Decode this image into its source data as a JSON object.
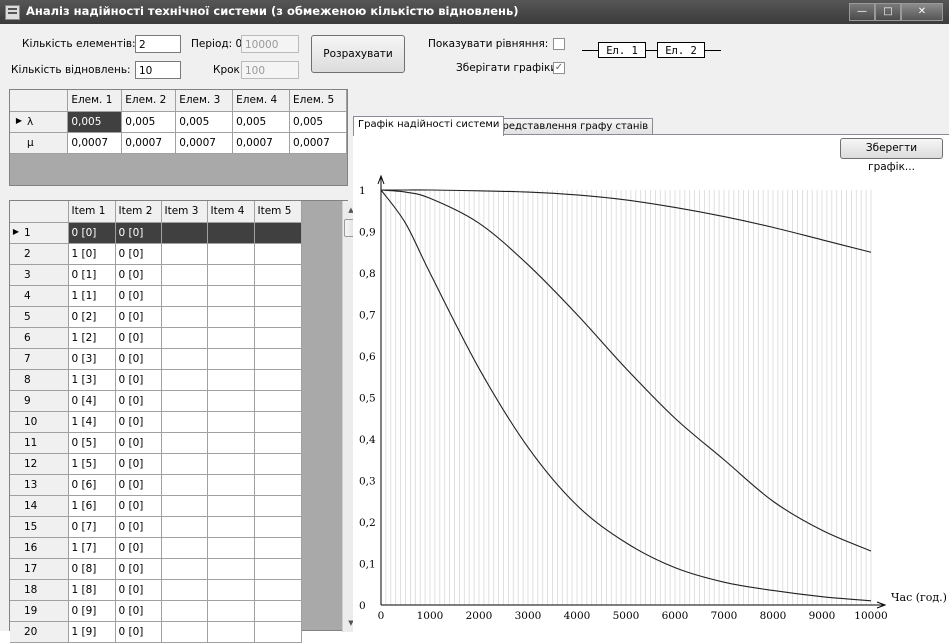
{
  "window": {
    "title": "Аналіз надійності технічної системи (з обмеженою кількістю відновлень)",
    "min": "—",
    "max": "□",
    "close": "✕"
  },
  "controls": {
    "elements_label": "Кількість елементів:",
    "elements_value": "2",
    "recoveries_label": "Кількість відновлень:",
    "recoveries_value": "10",
    "period_label": "Період: 0 -",
    "period_value": "10000",
    "step_label": "Крок:",
    "step_value": "100",
    "calc_button": "Розрахувати",
    "show_equations_label": "Показувати рівняння:",
    "show_equations_checked": false,
    "save_charts_label": "Зберігати графіки:",
    "save_charts_checked": true
  },
  "diagram": {
    "el1": "Ел. 1",
    "el2": "Ел. 2"
  },
  "params_table": {
    "columns": [
      "Елем. 1",
      "Елем. 2",
      "Елем. 3",
      "Елем. 4",
      "Елем. 5"
    ],
    "rows": [
      {
        "name": "λ",
        "values": [
          "0,005",
          "0,005",
          "0,005",
          "0,005",
          "0,005"
        ]
      },
      {
        "name": "μ",
        "values": [
          "0,0007",
          "0,0007",
          "0,0007",
          "0,0007",
          "0,0007"
        ]
      }
    ]
  },
  "states_table": {
    "columns": [
      "Item 1",
      "Item 2",
      "Item 3",
      "Item 4",
      "Item 5"
    ],
    "rows": [
      {
        "n": "1",
        "c": [
          "0 [0]",
          "0 [0]"
        ]
      },
      {
        "n": "2",
        "c": [
          "1 [0]",
          "0 [0]"
        ]
      },
      {
        "n": "3",
        "c": [
          "0 [1]",
          "0 [0]"
        ]
      },
      {
        "n": "4",
        "c": [
          "1 [1]",
          "0 [0]"
        ]
      },
      {
        "n": "5",
        "c": [
          "0 [2]",
          "0 [0]"
        ]
      },
      {
        "n": "6",
        "c": [
          "1 [2]",
          "0 [0]"
        ]
      },
      {
        "n": "7",
        "c": [
          "0 [3]",
          "0 [0]"
        ]
      },
      {
        "n": "8",
        "c": [
          "1 [3]",
          "0 [0]"
        ]
      },
      {
        "n": "9",
        "c": [
          "0 [4]",
          "0 [0]"
        ]
      },
      {
        "n": "10",
        "c": [
          "1 [4]",
          "0 [0]"
        ]
      },
      {
        "n": "11",
        "c": [
          "0 [5]",
          "0 [0]"
        ]
      },
      {
        "n": "12",
        "c": [
          "1 [5]",
          "0 [0]"
        ]
      },
      {
        "n": "13",
        "c": [
          "0 [6]",
          "0 [0]"
        ]
      },
      {
        "n": "14",
        "c": [
          "1 [6]",
          "0 [0]"
        ]
      },
      {
        "n": "15",
        "c": [
          "0 [7]",
          "0 [0]"
        ]
      },
      {
        "n": "16",
        "c": [
          "1 [7]",
          "0 [0]"
        ]
      },
      {
        "n": "17",
        "c": [
          "0 [8]",
          "0 [0]"
        ]
      },
      {
        "n": "18",
        "c": [
          "1 [8]",
          "0 [0]"
        ]
      },
      {
        "n": "19",
        "c": [
          "0 [9]",
          "0 [0]"
        ]
      },
      {
        "n": "20",
        "c": [
          "1 [9]",
          "0 [0]"
        ]
      }
    ]
  },
  "tabs": [
    "Графік надійності системи",
    "Представлення графу станів"
  ],
  "save_chart_button": "Зберегти графік...",
  "chart_data": {
    "type": "line",
    "xlabel": "Час (год.)",
    "ylabel": "",
    "xlim": [
      0,
      10000
    ],
    "ylim": [
      0,
      1
    ],
    "x_ticks": [
      "0",
      "1000",
      "2000",
      "3000",
      "4000",
      "5000",
      "6000",
      "7000",
      "8000",
      "9000",
      "10000"
    ],
    "y_ticks": [
      "0",
      "0,1",
      "0,2",
      "0,3",
      "0,4",
      "0,5",
      "0,6",
      "0,7",
      "0,8",
      "0,9",
      "1"
    ],
    "grid": "vertical",
    "series": [
      {
        "x": [
          0,
          500,
          1000,
          2000,
          3000,
          4000,
          5000,
          6000,
          7000,
          8000,
          9000,
          10000
        ],
        "values": [
          1,
          1,
          1,
          0.998,
          0.995,
          0.988,
          0.976,
          0.958,
          0.936,
          0.91,
          0.88,
          0.85
        ]
      },
      {
        "x": [
          0,
          500,
          1000,
          2000,
          3000,
          4000,
          5000,
          6000,
          7000,
          8000,
          9000,
          10000
        ],
        "values": [
          1,
          0.995,
          0.98,
          0.92,
          0.82,
          0.7,
          0.57,
          0.45,
          0.35,
          0.25,
          0.18,
          0.13
        ]
      },
      {
        "x": [
          0,
          500,
          1000,
          2000,
          3000,
          4000,
          5000,
          6000,
          7000,
          8000,
          9000,
          10000
        ],
        "values": [
          1,
          0.92,
          0.8,
          0.57,
          0.38,
          0.24,
          0.15,
          0.09,
          0.055,
          0.035,
          0.02,
          0.01
        ]
      }
    ]
  }
}
